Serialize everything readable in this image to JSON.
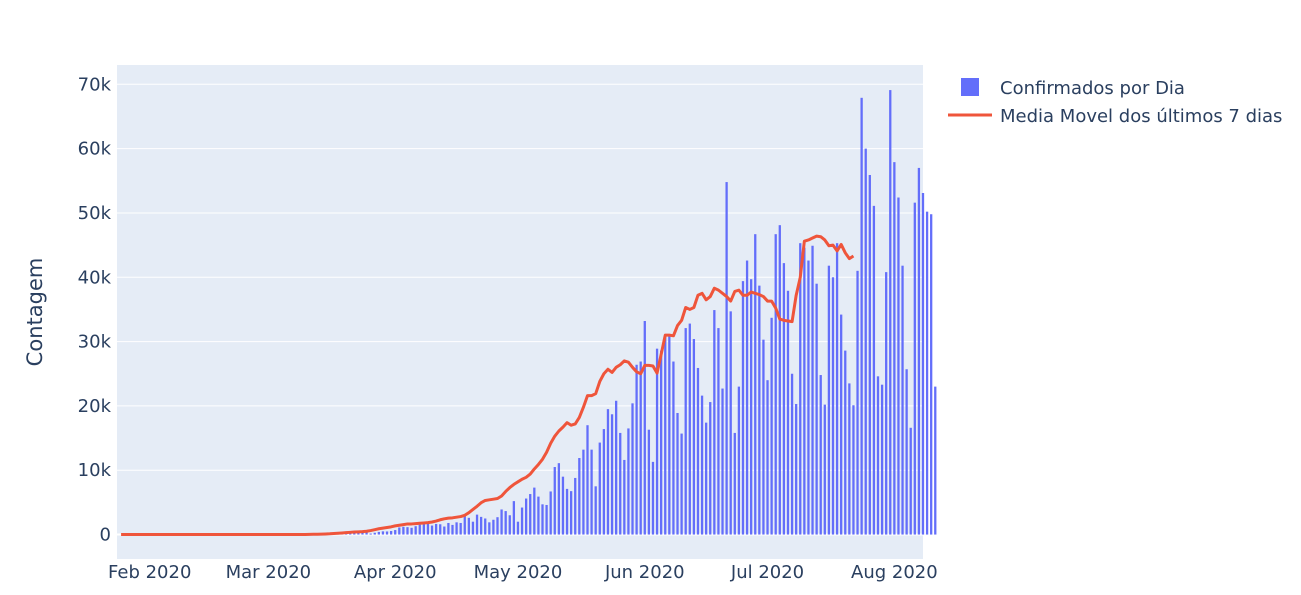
{
  "chart_data": {
    "type": "bar",
    "ylabel": "Contagem",
    "ylim": [
      -3800,
      73000
    ],
    "y_ticks": [
      0,
      10000,
      20000,
      30000,
      40000,
      50000,
      60000,
      70000
    ],
    "y_tick_labels": [
      "0",
      "10k",
      "20k",
      "30k",
      "40k",
      "50k",
      "60k",
      "70k"
    ],
    "x_range": [
      "2020-01-24",
      "2020-08-08"
    ],
    "x_ticks": [
      "2020-02-01",
      "2020-03-01",
      "2020-04-01",
      "2020-05-01",
      "2020-06-01",
      "2020-07-01",
      "2020-08-01"
    ],
    "x_tick_labels": [
      "Feb 2020",
      "Mar 2020",
      "Apr 2020",
      "May 2020",
      "Jun 2020",
      "Jul 2020",
      "Aug 2020"
    ],
    "grid": true,
    "legend_position": "top-right",
    "colors": {
      "bars": "#636efa",
      "line": "#ef553b",
      "plot_bg": "#e5ecf6",
      "grid": "#ffffff",
      "text": "#2a3f5f"
    },
    "series": [
      {
        "name": "Confirmados por Dia",
        "type": "bar",
        "start_date": "2020-02-26",
        "values": [
          1,
          0,
          0,
          0,
          0,
          1,
          0,
          0,
          0,
          5,
          5,
          2,
          6,
          7,
          12,
          12,
          10,
          40,
          30,
          40,
          79,
          70,
          110,
          170,
          240,
          300,
          380,
          350,
          330,
          150,
          280,
          410,
          500,
          480,
          550,
          700,
          1100,
          1200,
          1150,
          1050,
          1300,
          1550,
          2000,
          1900,
          1400,
          1650,
          1600,
          1250,
          1800,
          1500,
          1900,
          1800,
          3000,
          2600,
          2000,
          3100,
          2750,
          2500,
          1900,
          2300,
          2700,
          3900,
          3650,
          3000,
          5200,
          2000,
          4200,
          5600,
          6300,
          7300,
          5900,
          4700,
          4600,
          6700,
          10500,
          11100,
          9000,
          7100,
          6750,
          8800,
          11900,
          13200,
          17000,
          13200,
          7500,
          14300,
          16400,
          19500,
          18700,
          20800,
          15800,
          11600,
          16500,
          20400,
          26400,
          26900,
          33200,
          16300,
          11300,
          28900,
          28600,
          30900,
          30800,
          26900,
          18900,
          15700,
          32100,
          32800,
          30400,
          25900,
          21600,
          17400,
          20600,
          34900,
          32100,
          22700,
          54800,
          34700,
          15800,
          23000,
          39400,
          42600,
          39700,
          46700,
          38700,
          30300,
          24000,
          33700,
          46700,
          48100,
          42200,
          37900,
          25000,
          20300,
          45300,
          44600,
          42600,
          44900,
          39000,
          24800,
          20200,
          41800,
          40000,
          45300,
          34200,
          28600,
          23500,
          20100,
          41000,
          67900,
          60000,
          55900,
          51100,
          24600,
          23300,
          40800,
          69100,
          57900,
          52400,
          41800,
          25700,
          16600,
          51600,
          57000,
          53100,
          50200,
          49800,
          23000
        ]
      },
      {
        "name": "Media Movel dos últimos 7 dias",
        "type": "line",
        "start_date": "2020-01-25",
        "values": [
          0,
          0,
          0,
          0,
          0,
          0,
          0,
          0,
          0,
          0,
          0,
          0,
          0,
          0,
          0,
          0,
          0,
          0,
          0,
          0,
          0,
          0,
          0,
          0,
          0,
          0,
          0,
          0,
          0,
          0,
          0,
          0,
          0,
          0,
          1,
          1,
          2,
          3,
          4,
          5,
          6,
          7,
          9,
          11,
          14,
          19,
          29,
          40,
          55,
          75,
          95,
          120,
          160,
          200,
          250,
          300,
          350,
          390,
          420,
          460,
          520,
          620,
          760,
          900,
          1000,
          1100,
          1200,
          1350,
          1450,
          1550,
          1650,
          1650,
          1700,
          1750,
          1800,
          1850,
          1950,
          2100,
          2300,
          2450,
          2550,
          2600,
          2700,
          2800,
          3000,
          3400,
          3900,
          4400,
          4950,
          5300,
          5400,
          5500,
          5600,
          6000,
          6700,
          7300,
          7800,
          8200,
          8600,
          8900,
          9400,
          10200,
          10900,
          11700,
          12800,
          14200,
          15300,
          16100,
          16700,
          17400,
          17000,
          17200,
          18200,
          19800,
          21600,
          21600,
          21900,
          23800,
          25000,
          25700,
          25200,
          26000,
          26400,
          27000,
          26800,
          26000,
          25300,
          25000,
          26300,
          26300,
          26200,
          25100,
          28000,
          31000,
          31000,
          30900,
          32500,
          33300,
          35300,
          35000,
          35300,
          37200,
          37500,
          36500,
          37000,
          38300,
          38000,
          37500,
          37000,
          36300,
          37800,
          38000,
          37200,
          37200,
          37700,
          37500,
          37300,
          37000,
          36300,
          36300,
          35200,
          33500,
          33300,
          33200,
          33100,
          37200,
          40000,
          45600,
          45800,
          46100,
          46400,
          46300,
          45800,
          44900,
          45000,
          44100,
          45100,
          43800,
          42900,
          43300
        ]
      }
    ]
  }
}
